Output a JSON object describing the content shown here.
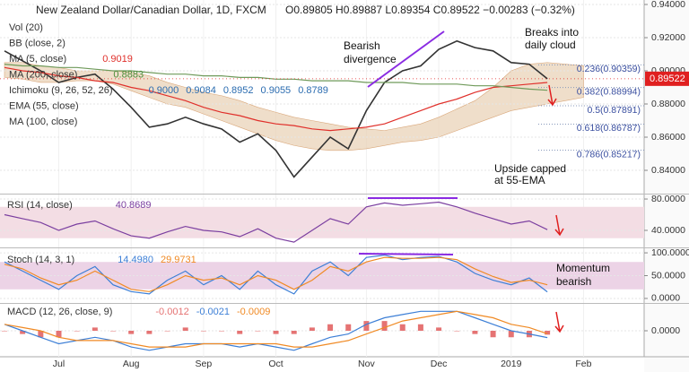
{
  "chart_data": [
    {
      "type": "line",
      "title": "New Zealand Dollar/Canadian Dollar, 1D, FXCM",
      "subtitle": "O0.89805 H0.89887 L0.89354 C0.89522 −0.00283 (−0.32%)",
      "categories": [
        null,
        null,
        null,
        "Jul",
        null,
        null,
        null,
        "Aug",
        null,
        null,
        null,
        "Sep",
        null,
        null,
        null,
        "Oct",
        null,
        null,
        null,
        null,
        "Nov",
        null,
        null,
        null,
        "Dec",
        null,
        null,
        null,
        "2019",
        null,
        null,
        null,
        "Feb"
      ],
      "series": [
        {
          "color": "#333333",
          "values": [
            0.912,
            0.906,
            0.9,
            0.893,
            0.896,
            0.898,
            0.889,
            0.878,
            0.866,
            0.868,
            0.872,
            0.868,
            0.865,
            0.857,
            0.862,
            0.852,
            0.836,
            0.848,
            0.86,
            0.853,
            0.876,
            0.893,
            0.9,
            0.903,
            0.913,
            0.918,
            0.914,
            0.912,
            0.905,
            0.904,
            0.89522,
            null,
            null
          ]
        },
        {
          "color": "#e0302b",
          "values": [
            0.902,
            0.9,
            0.899,
            0.897,
            0.896,
            0.894,
            0.893,
            0.89,
            0.888,
            0.885,
            0.882,
            0.878,
            0.875,
            0.873,
            0.87,
            0.868,
            0.867,
            0.865,
            0.864,
            0.865,
            0.866,
            0.868,
            0.872,
            0.876,
            0.88,
            0.883,
            0.887,
            0.89,
            0.891,
            0.892,
            0.893,
            null,
            null
          ]
        },
        {
          "color": "#6f9a5a",
          "values": [
            0.904,
            0.903,
            0.903,
            0.902,
            0.902,
            0.901,
            0.9,
            0.9,
            0.899,
            0.898,
            0.898,
            0.897,
            0.897,
            0.896,
            0.896,
            0.895,
            0.895,
            0.894,
            0.894,
            0.894,
            0.893,
            0.893,
            0.893,
            0.892,
            0.892,
            0.892,
            0.891,
            0.891,
            0.89,
            0.889,
            0.8883,
            null,
            null
          ]
        }
      ],
      "cloud": {
        "color": "#e9d3b8",
        "upper": [
          0.905,
          0.905,
          0.903,
          0.902,
          0.9,
          0.9,
          0.9,
          0.899,
          0.897,
          0.893,
          0.89,
          0.887,
          0.885,
          0.882,
          0.878,
          0.875,
          0.872,
          0.87,
          0.868,
          0.866,
          0.865,
          0.864,
          0.866,
          0.868,
          0.872,
          0.877,
          0.882,
          0.89,
          0.9,
          0.904,
          0.905,
          0.904,
          0.903
        ],
        "lower": [
          0.896,
          0.895,
          0.893,
          0.893,
          0.894,
          0.894,
          0.892,
          0.888,
          0.884,
          0.88,
          0.878,
          0.874,
          0.87,
          0.866,
          0.862,
          0.858,
          0.855,
          0.853,
          0.852,
          0.852,
          0.853,
          0.855,
          0.857,
          0.858,
          0.86,
          0.864,
          0.868,
          0.872,
          0.876,
          0.878,
          0.88,
          0.882,
          0.884
        ]
      },
      "ylim": [
        0.8265,
        0.9427
      ],
      "yticks": [
        {
          "value": 0.84,
          "label": "0.84000"
        },
        {
          "value": 0.86,
          "label": "0.86000"
        },
        {
          "value": 0.88,
          "label": "0.88000"
        },
        {
          "value": 0.9,
          "label": "0.90000"
        },
        {
          "value": 0.92,
          "label": "0.92000"
        },
        {
          "value": 0.94,
          "label": "0.94000"
        }
      ],
      "last_price": 0.89522,
      "levels": [
        {
          "value": 0.90359,
          "label": "0.236(0.90359)"
        },
        {
          "value": 0.88994,
          "label": "0.382(0.88994)"
        },
        {
          "value": 0.87891,
          "label": "0.5(0.87891)"
        },
        {
          "value": 0.86787,
          "label": "0.618(0.86787)"
        },
        {
          "value": 0.85217,
          "label": "0.786(0.85217)"
        }
      ],
      "indicator_labels": [
        {
          "name": "Vol (20)",
          "values": []
        },
        {
          "name": "BB (close, 2)",
          "values": []
        },
        {
          "name": "MA (5, close)",
          "values": [
            "0.9019"
          ],
          "color": "#e0302b"
        },
        {
          "name": "MA (200, close)",
          "values": [
            "0.8883"
          ],
          "color": "#4c8c3a"
        },
        {
          "name": "Ichimoku (9, 26, 52, 26)",
          "values": [
            "0.9000",
            "0.9084",
            "0.8952",
            "0.9055",
            "0.8789"
          ],
          "color": "#2b6cb0"
        },
        {
          "name": "EMA (55, close)",
          "values": [],
          "color": "#e0302b"
        },
        {
          "name": "MA (100, close)",
          "values": []
        }
      ],
      "annotations": [
        [
          "Bearish",
          "divergence"
        ],
        [
          "Breaks into",
          "daily cloud"
        ],
        [
          "Upside capped",
          "at 55-EMA"
        ]
      ]
    },
    {
      "type": "line",
      "title": "RSI (14, close)",
      "series": [
        {
          "color": "#7b3fa0",
          "value_label": "40.8689",
          "values": [
            60,
            55,
            50,
            40,
            48,
            52,
            42,
            33,
            30,
            38,
            45,
            40,
            38,
            32,
            42,
            30,
            25,
            40,
            55,
            48,
            70,
            75,
            72,
            74,
            76,
            70,
            62,
            55,
            48,
            52,
            40.8689,
            null,
            null
          ]
        }
      ],
      "band": [
        30,
        70
      ],
      "band_color": "#f3dde4",
      "ylim": [
        19.4,
        84.6
      ],
      "yticks": [
        {
          "value": 40,
          "label": "40.0000"
        },
        {
          "value": 80,
          "label": "80.0000"
        }
      ]
    },
    {
      "type": "line",
      "title": "Stoch (14, 3, 1)",
      "series": [
        {
          "color": "#3d7fd6",
          "value_label": "14.4980",
          "values": [
            80,
            60,
            40,
            20,
            50,
            70,
            30,
            15,
            10,
            40,
            60,
            30,
            50,
            20,
            60,
            30,
            10,
            60,
            80,
            50,
            90,
            95,
            85,
            90,
            92,
            80,
            55,
            40,
            30,
            45,
            14.498,
            null,
            null
          ]
        },
        {
          "color": "#f08a24",
          "value_label": "29.9731",
          "values": [
            75,
            65,
            45,
            30,
            40,
            60,
            40,
            20,
            15,
            30,
            50,
            40,
            45,
            30,
            50,
            40,
            20,
            40,
            70,
            60,
            80,
            90,
            88,
            88,
            90,
            85,
            65,
            48,
            35,
            40,
            29.9731,
            null,
            null
          ]
        }
      ],
      "band": [
        20,
        80
      ],
      "band_color": "#ecd3e6",
      "ylim": [
        -6,
        108
      ],
      "yticks": [
        {
          "value": 0,
          "label": "0.0000"
        },
        {
          "value": 50,
          "label": "50.0000"
        },
        {
          "value": 100,
          "label": "100.0000"
        }
      ],
      "annotations": [
        [
          "Momentum",
          "bearish"
        ]
      ]
    },
    {
      "type": "line",
      "title": "MACD (12, 26, close, 9)",
      "series": [
        {
          "type": "bar",
          "color": "#e57373",
          "value_label": "-0.0012",
          "values": [
            0,
            -0.001,
            -0.002,
            -0.002,
            0,
            0.001,
            0,
            -0.001,
            -0.001,
            0,
            0.001,
            0,
            0,
            -0.001,
            0,
            -0.001,
            -0.001,
            0.001,
            0.002,
            0.002,
            0.003,
            0.003,
            0.002,
            0.002,
            0.001,
            0,
            -0.001,
            -0.002,
            -0.002,
            -0.002,
            -0.0012,
            null,
            null
          ]
        },
        {
          "color": "#3d7fd6",
          "value_label": "-0.0021",
          "values": [
            0.002,
            0.0,
            -0.002,
            -0.004,
            -0.003,
            -0.002,
            -0.003,
            -0.005,
            -0.006,
            -0.005,
            -0.004,
            -0.004,
            -0.004,
            -0.005,
            -0.004,
            -0.005,
            -0.006,
            -0.004,
            -0.002,
            -0.001,
            0.002,
            0.004,
            0.005,
            0.006,
            0.006,
            0.006,
            0.004,
            0.002,
            0.0,
            -0.001,
            -0.0021,
            null,
            null
          ]
        },
        {
          "color": "#f08a24",
          "value_label": "-0.0009",
          "values": [
            0.002,
            0.001,
            0.0,
            -0.002,
            -0.003,
            -0.003,
            -0.003,
            -0.004,
            -0.005,
            -0.005,
            -0.005,
            -0.004,
            -0.004,
            -0.004,
            -0.004,
            -0.004,
            -0.005,
            -0.005,
            -0.004,
            -0.003,
            -0.001,
            0.001,
            0.003,
            0.004,
            0.005,
            0.006,
            0.005,
            0.004,
            0.002,
            0.001,
            -0.0009,
            null,
            null
          ]
        }
      ],
      "ylim": [
        -0.008,
        0.008
      ],
      "yticks": [
        {
          "value": 0,
          "label": "0.0000"
        }
      ]
    }
  ]
}
